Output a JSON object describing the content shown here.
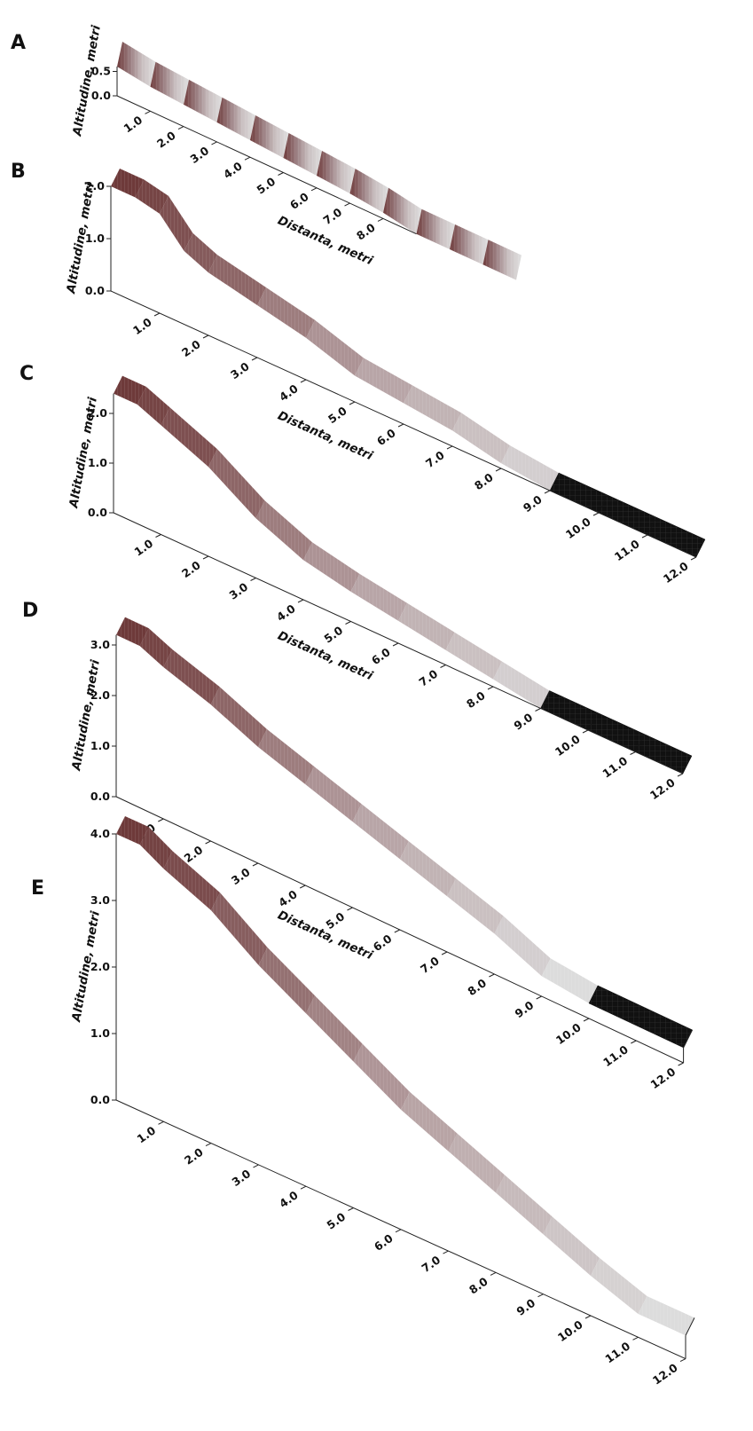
{
  "panels": [
    "A",
    "B",
    "C",
    "D",
    "E"
  ],
  "chart_data": [
    {
      "panel": "A",
      "type": "area",
      "ylabel": "Altitudine, metri",
      "xlabel": "",
      "x_ticks": [
        "1.0",
        "2.0",
        "3.0",
        "4.0",
        "5.0",
        "6.0",
        "7.0",
        "8.0"
      ],
      "y_ticks": [
        "0.0",
        "0.5"
      ],
      "ylim": [
        0,
        0.6
      ],
      "x": [
        0,
        1,
        2,
        3,
        4,
        5,
        6,
        7,
        8,
        9,
        10,
        11,
        12
      ],
      "y": [
        0.6,
        0.5,
        0.45,
        0.4,
        0.35,
        0.3,
        0.25,
        0.2,
        0.12,
        0.0,
        0.0,
        0.0,
        0.0
      ]
    },
    {
      "panel": "B",
      "type": "area",
      "ylabel": "Altitudine, metri",
      "xlabel": "Distanta, metri",
      "x_ticks": [
        "1.0",
        "2.0",
        "3.0",
        "4.0",
        "5.0",
        "6.0",
        "7.0",
        "8.0",
        "9.0",
        "10.0",
        "11.0",
        "12.0"
      ],
      "y_ticks": [
        "0.0",
        "1.0",
        "2.0"
      ],
      "ylim": [
        0,
        2.0
      ],
      "x": [
        0,
        0.5,
        1,
        1.5,
        2,
        3,
        4,
        5,
        6,
        7,
        8,
        9,
        10,
        11,
        12
      ],
      "y": [
        2.0,
        2.0,
        1.9,
        1.4,
        1.2,
        1.0,
        0.8,
        0.5,
        0.4,
        0.3,
        0.1,
        0.0,
        0.0,
        0.0,
        0.0
      ]
    },
    {
      "panel": "C",
      "type": "area",
      "ylabel": "Altitudine, metri",
      "xlabel": "Distanta, metri",
      "x_ticks": [
        "1.0",
        "2.0",
        "3.0",
        "4.0",
        "5.0",
        "6.0",
        "7.0",
        "8.0",
        "9.0",
        "10.0",
        "11.0",
        "12.0"
      ],
      "y_ticks": [
        "0.0",
        "1.0",
        "2.0"
      ],
      "ylim": [
        0,
        2.4
      ],
      "x": [
        0,
        0.5,
        1,
        2,
        3,
        4,
        5,
        6,
        7,
        8,
        9,
        10,
        11,
        12
      ],
      "y": [
        2.4,
        2.4,
        2.2,
        1.8,
        1.2,
        0.8,
        0.6,
        0.45,
        0.3,
        0.15,
        0.0,
        0.0,
        0.0,
        0.0
      ]
    },
    {
      "panel": "D",
      "type": "area",
      "ylabel": "Altitudine, metri",
      "xlabel": "Distanta, metri",
      "x_ticks": [
        "1.0",
        "2.0",
        "3.0",
        "4.0",
        "5.0",
        "6.0",
        "7.0",
        "8.0",
        "9.0",
        "10.0",
        "11.0",
        "12.0"
      ],
      "y_ticks": [
        "0.0",
        "1.0",
        "2.0",
        "3.0"
      ],
      "ylim": [
        0,
        3.2
      ],
      "x": [
        0,
        0.5,
        1,
        2,
        3,
        4,
        5,
        6,
        7,
        8,
        9,
        10,
        11,
        12
      ],
      "y": [
        3.2,
        3.2,
        3.0,
        2.7,
        2.3,
        2.0,
        1.7,
        1.4,
        1.1,
        0.8,
        0.4,
        0.3,
        0.3,
        0.3
      ]
    },
    {
      "panel": "E",
      "type": "area",
      "ylabel": "Altitudine, metri",
      "xlabel": "Distanta, metri",
      "x_ticks": [
        "1.0",
        "2.0",
        "3.0",
        "4.0",
        "5.0",
        "6.0",
        "7.0",
        "8.0",
        "9.0",
        "10.0",
        "11.0",
        "12.0"
      ],
      "y_ticks": [
        "0.0",
        "1.0",
        "2.0",
        "3.0",
        "4.0"
      ],
      "ylim": [
        0,
        4.0
      ],
      "x": [
        0,
        0.5,
        1,
        2,
        3,
        4,
        5,
        6,
        7,
        8,
        9,
        10,
        11,
        12
      ],
      "y": [
        4.0,
        4.0,
        3.8,
        3.5,
        3.0,
        2.6,
        2.2,
        1.8,
        1.5,
        1.2,
        0.9,
        0.6,
        0.35,
        0.35
      ]
    }
  ],
  "colors": {
    "high": "#6e3a3a",
    "mid": "#b49ea0",
    "low": "#dcdcdc",
    "flat_dark": "#111111",
    "axis": "#222222"
  }
}
